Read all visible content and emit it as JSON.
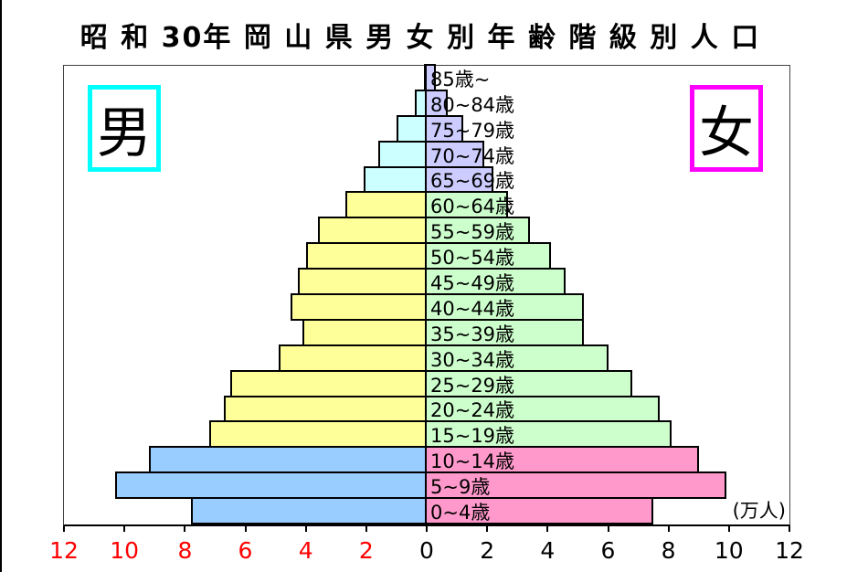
{
  "title": "昭 和 30年 岡 山 県 男 女 別 年 齢 階 級 別 人 口",
  "legend": {
    "male_label": "男",
    "female_label": "女"
  },
  "unit_label": "(万人)",
  "colors": {
    "male_box_border": "#00FFFF",
    "female_box_border": "#FF00FF",
    "axis_negative_tick": "#FF0000",
    "axis_positive_tick": "#000000",
    "bar_border": "#000000"
  },
  "chart_data": {
    "type": "bar",
    "subtype": "population-pyramid",
    "title": "昭和30年岡山県男女別年齢階級別人口",
    "unit": "万人",
    "xlim": [
      -12,
      12
    ],
    "grid": false,
    "categories": [
      "0~4歳",
      "5~9歳",
      "10~14歳",
      "15~19歳",
      "20~24歳",
      "25~29歳",
      "30~34歳",
      "35~39歳",
      "40~44歳",
      "45~49歳",
      "50~54歳",
      "55~59歳",
      "60~64歳",
      "65~69歳",
      "70~74歳",
      "75~79歳",
      "80~84歳",
      "85歳~"
    ],
    "series": [
      {
        "name": "男",
        "side": "left",
        "values": [
          7.8,
          10.3,
          9.2,
          7.2,
          6.7,
          6.5,
          4.9,
          4.1,
          4.5,
          4.25,
          4.0,
          3.6,
          2.7,
          2.1,
          1.6,
          1.0,
          0.4,
          0.1
        ]
      },
      {
        "name": "女",
        "side": "right",
        "values": [
          7.5,
          9.9,
          9.0,
          8.1,
          7.7,
          6.8,
          6.0,
          5.2,
          5.2,
          4.6,
          4.1,
          3.4,
          2.7,
          2.2,
          1.9,
          1.2,
          0.7,
          0.3
        ]
      }
    ],
    "color_groups": [
      {
        "start": 0,
        "end": 2,
        "male": "#99CCFF",
        "female": "#FF99CC"
      },
      {
        "start": 3,
        "end": 12,
        "male": "#FFFF99",
        "female": "#CCFFCC"
      },
      {
        "start": 13,
        "end": 17,
        "male": "#CCFFFF",
        "female": "#CCCCFF"
      }
    ],
    "x_ticks": [
      {
        "v": -12,
        "label": "12"
      },
      {
        "v": -10,
        "label": "10"
      },
      {
        "v": -8,
        "label": "8"
      },
      {
        "v": -6,
        "label": "6"
      },
      {
        "v": -4,
        "label": "4"
      },
      {
        "v": -2,
        "label": "2"
      },
      {
        "v": 0,
        "label": "0"
      },
      {
        "v": 2,
        "label": "2"
      },
      {
        "v": 4,
        "label": "4"
      },
      {
        "v": 6,
        "label": "6"
      },
      {
        "v": 8,
        "label": "8"
      },
      {
        "v": 10,
        "label": "10"
      },
      {
        "v": 12,
        "label": "12"
      }
    ]
  }
}
